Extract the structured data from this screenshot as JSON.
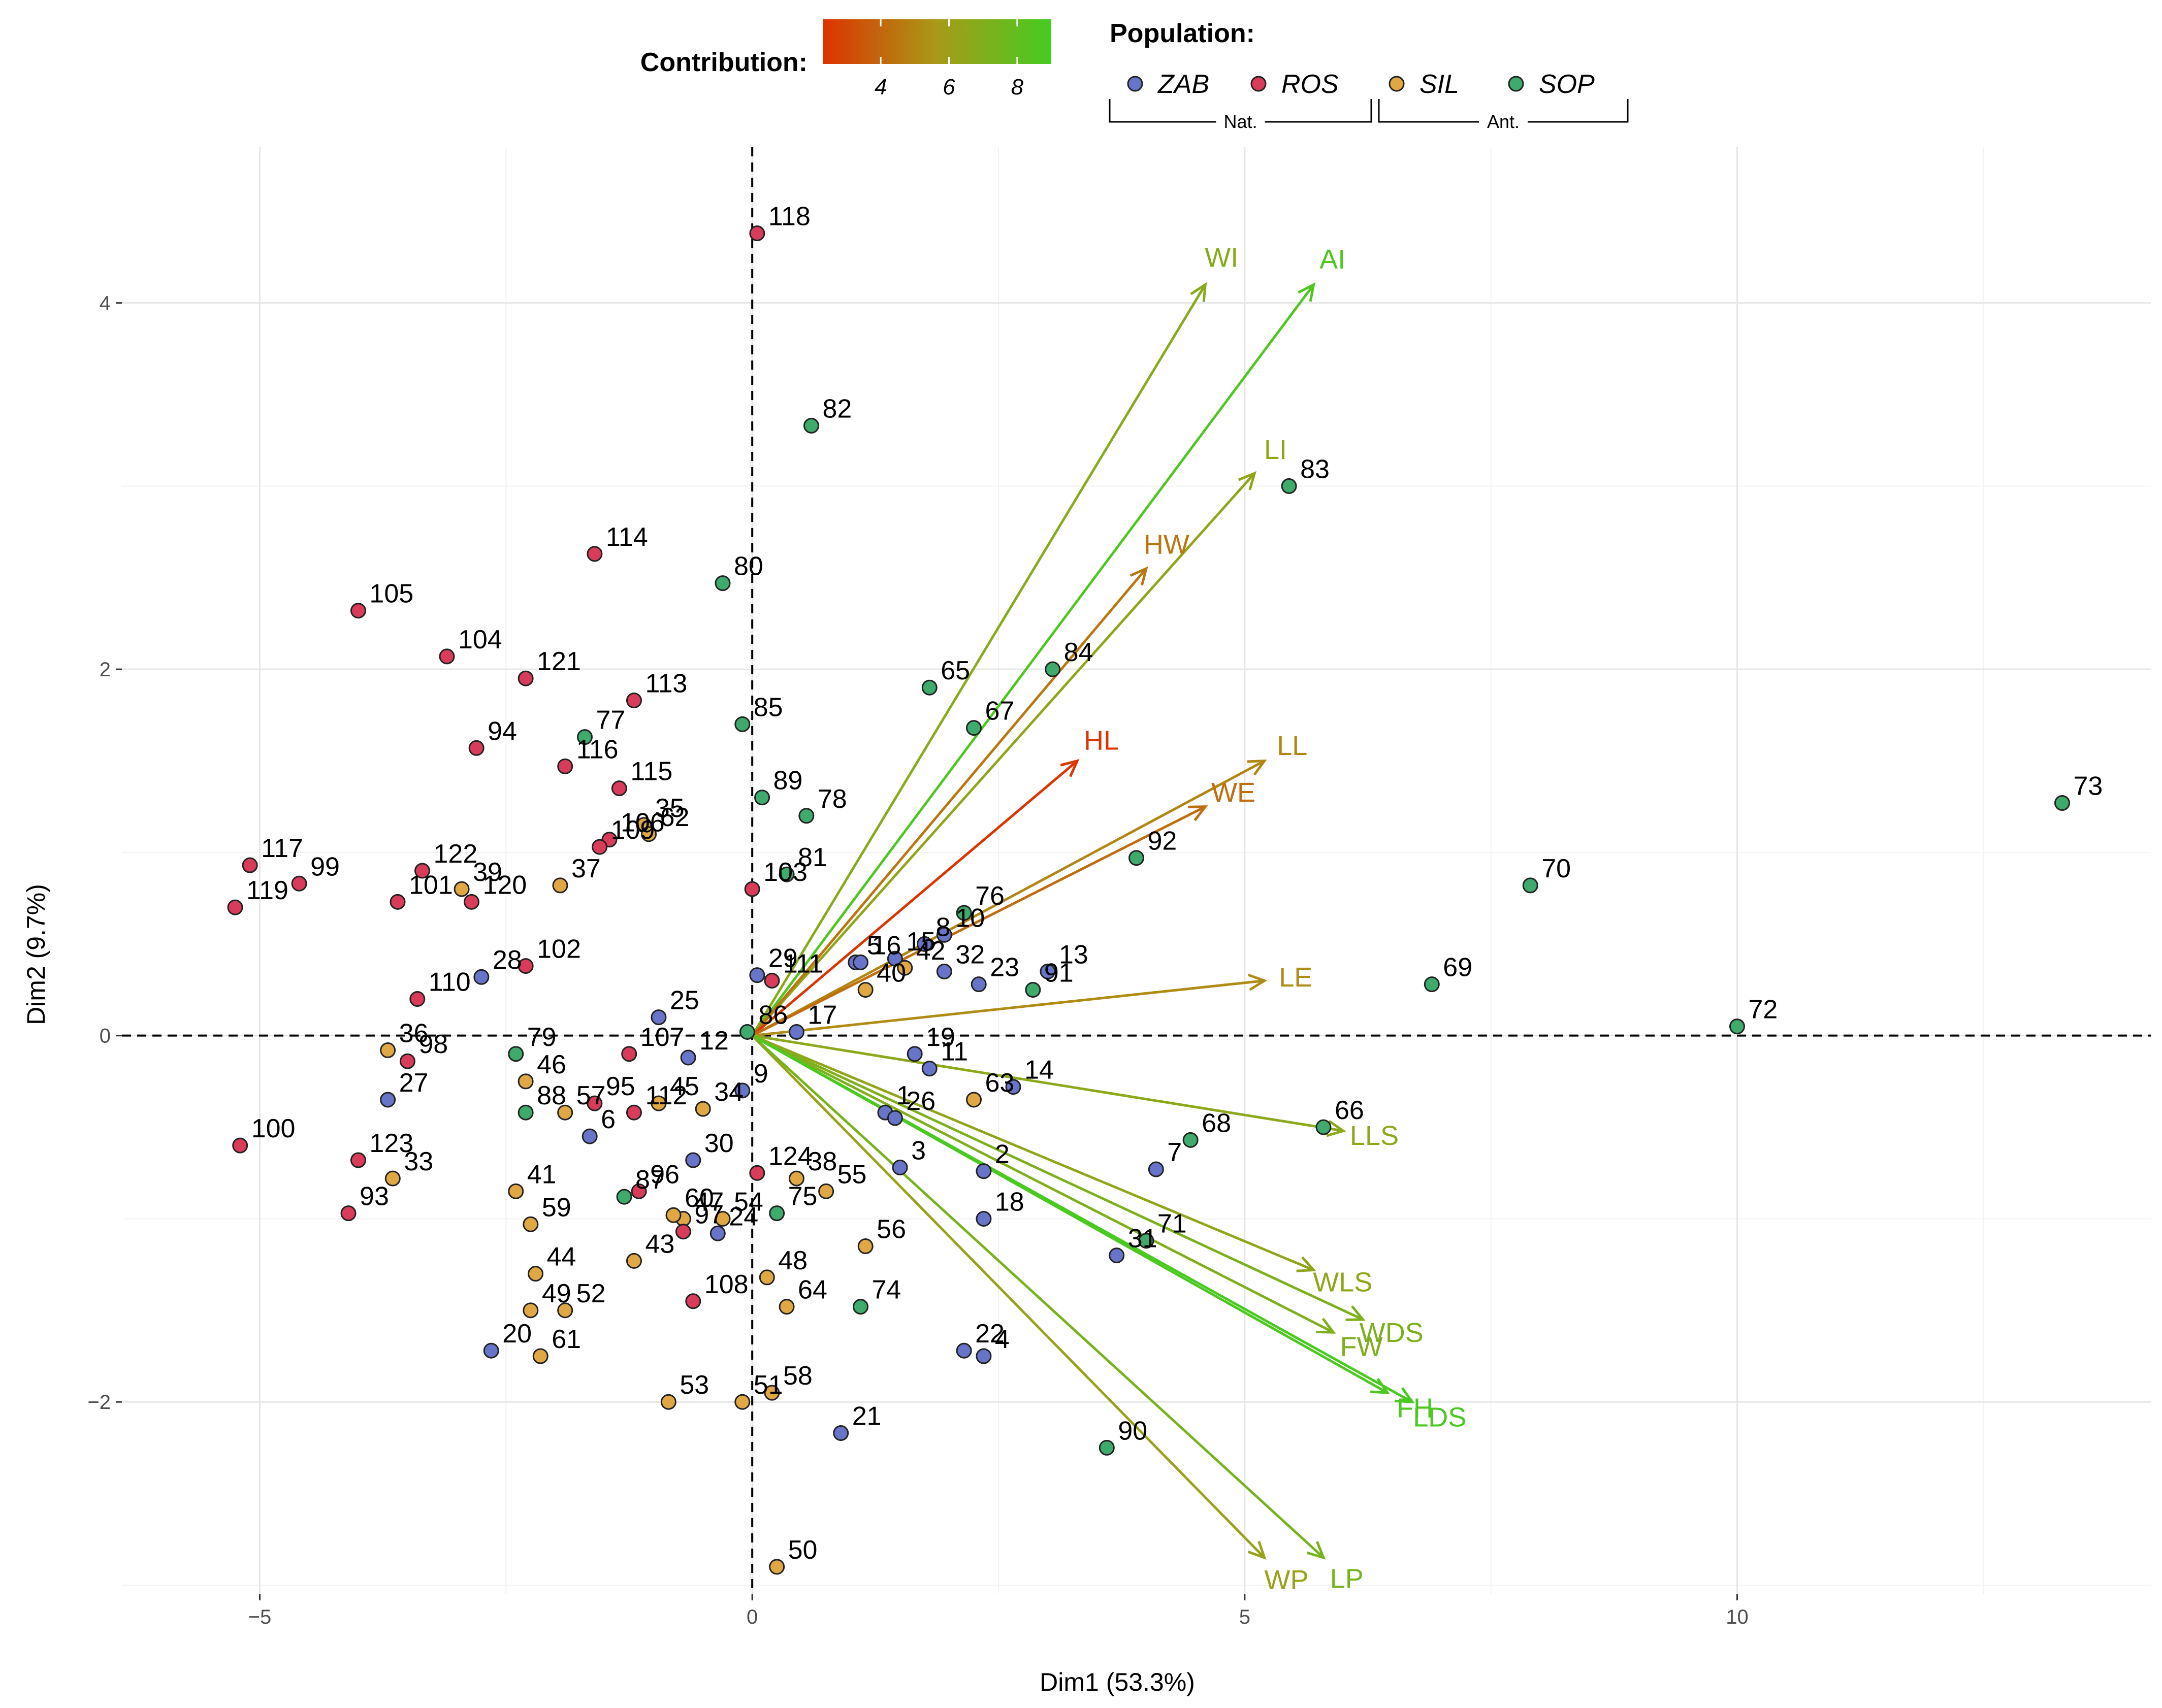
{
  "chart_data": {
    "type": "scatter",
    "subtype": "pca-biplot",
    "xlabel": "Dim1 (53.3%)",
    "ylabel": "Dim2 (9.7%)",
    "xlim": [
      -6.4,
      14.2
    ],
    "ylim": [
      -3.05,
      4.85
    ],
    "xticks": [
      -5,
      0,
      5,
      10
    ],
    "yticks": [
      -2,
      0,
      2,
      4
    ],
    "grid": true,
    "legend": {
      "contribution_title": "Contribution:",
      "contribution_range": [
        2.3,
        9.0
      ],
      "contribution_ticks": [
        4,
        6,
        8
      ],
      "contribution_colors": [
        "#dd3300",
        "#a89a18",
        "#44cc22"
      ],
      "population_title": "Population:",
      "populations": [
        {
          "code": "ZAB",
          "color": "#6874c8",
          "group": "Nat."
        },
        {
          "code": "ROS",
          "color": "#d83c5a",
          "group": "Nat."
        },
        {
          "code": "SIL",
          "color": "#e0a845",
          "group": "Ant."
        },
        {
          "code": "SOP",
          "color": "#3eaa6c",
          "group": "Ant."
        }
      ],
      "groups": [
        "Nat.",
        "Ant."
      ]
    },
    "variables": [
      {
        "name": "WI",
        "x": 4.6,
        "y": 4.1,
        "contrib": 6.8
      },
      {
        "name": "AI",
        "x": 5.7,
        "y": 4.1,
        "contrib": 8.6
      },
      {
        "name": "LI",
        "x": 5.1,
        "y": 3.07,
        "contrib": 6.4
      },
      {
        "name": "HW",
        "x": 4.0,
        "y": 2.55,
        "contrib": 4.5
      },
      {
        "name": "HL",
        "x": 3.3,
        "y": 1.5,
        "contrib": 2.4
      },
      {
        "name": "LL",
        "x": 5.2,
        "y": 1.5,
        "contrib": 5.0
      },
      {
        "name": "WE",
        "x": 4.6,
        "y": 1.25,
        "contrib": 4.2
      },
      {
        "name": "LE",
        "x": 5.2,
        "y": 0.3,
        "contrib": 5.2
      },
      {
        "name": "LLS",
        "x": 6.0,
        "y": -0.52,
        "contrib": 6.6
      },
      {
        "name": "WLS",
        "x": 5.7,
        "y": -1.28,
        "contrib": 6.4
      },
      {
        "name": "WDS",
        "x": 6.2,
        "y": -1.55,
        "contrib": 7.1
      },
      {
        "name": "FW",
        "x": 5.9,
        "y": -1.62,
        "contrib": 7.0
      },
      {
        "name": "FH",
        "x": 6.45,
        "y": -1.95,
        "contrib": 8.7
      },
      {
        "name": "LDS",
        "x": 6.7,
        "y": -2.0,
        "contrib": 8.8
      },
      {
        "name": "WP",
        "x": 5.2,
        "y": -2.85,
        "contrib": 6.2
      },
      {
        "name": "LP",
        "x": 5.8,
        "y": -2.85,
        "contrib": 7.3
      }
    ],
    "individuals": [
      {
        "id": "1",
        "x": 1.35,
        "y": -0.42,
        "pop": "ZAB"
      },
      {
        "id": "2",
        "x": 2.35,
        "y": -0.74,
        "pop": "ZAB"
      },
      {
        "id": "3",
        "x": 1.5,
        "y": -0.72,
        "pop": "ZAB"
      },
      {
        "id": "4",
        "x": 2.35,
        "y": -1.75,
        "pop": "ZAB"
      },
      {
        "id": "5",
        "x": 1.05,
        "y": 0.4,
        "pop": "ZAB"
      },
      {
        "id": "6",
        "x": -1.65,
        "y": -0.55,
        "pop": "ZAB"
      },
      {
        "id": "7",
        "x": 4.1,
        "y": -0.73,
        "pop": "ZAB"
      },
      {
        "id": "8",
        "x": 1.75,
        "y": 0.5,
        "pop": "ZAB"
      },
      {
        "id": "9",
        "x": -0.1,
        "y": -0.3,
        "pop": "ZAB"
      },
      {
        "id": "10",
        "x": 1.95,
        "y": 0.55,
        "pop": "ZAB"
      },
      {
        "id": "11",
        "x": 1.8,
        "y": -0.18,
        "pop": "ZAB"
      },
      {
        "id": "12",
        "x": -0.65,
        "y": -0.12,
        "pop": "ZAB"
      },
      {
        "id": "13",
        "x": 3.0,
        "y": 0.35,
        "pop": "ZAB"
      },
      {
        "id": "14",
        "x": 2.65,
        "y": -0.28,
        "pop": "ZAB"
      },
      {
        "id": "15",
        "x": 1.45,
        "y": 0.42,
        "pop": "ZAB"
      },
      {
        "id": "16",
        "x": 1.1,
        "y": 0.4,
        "pop": "ZAB"
      },
      {
        "id": "17",
        "x": 0.45,
        "y": 0.02,
        "pop": "ZAB"
      },
      {
        "id": "18",
        "x": 2.35,
        "y": -1.0,
        "pop": "ZAB"
      },
      {
        "id": "19",
        "x": 1.65,
        "y": -0.1,
        "pop": "ZAB"
      },
      {
        "id": "20",
        "x": -2.65,
        "y": -1.72,
        "pop": "ZAB"
      },
      {
        "id": "21",
        "x": 0.9,
        "y": -2.17,
        "pop": "ZAB"
      },
      {
        "id": "22",
        "x": 2.15,
        "y": -1.72,
        "pop": "ZAB"
      },
      {
        "id": "23",
        "x": 2.3,
        "y": 0.28,
        "pop": "ZAB"
      },
      {
        "id": "24",
        "x": -0.35,
        "y": -1.08,
        "pop": "ZAB"
      },
      {
        "id": "25",
        "x": -0.95,
        "y": 0.1,
        "pop": "ZAB"
      },
      {
        "id": "26",
        "x": 1.45,
        "y": -0.45,
        "pop": "ZAB"
      },
      {
        "id": "27",
        "x": -3.7,
        "y": -0.35,
        "pop": "ZAB"
      },
      {
        "id": "28",
        "x": -2.75,
        "y": 0.32,
        "pop": "ZAB"
      },
      {
        "id": "29",
        "x": 0.05,
        "y": 0.33,
        "pop": "ZAB"
      },
      {
        "id": "30",
        "x": -0.6,
        "y": -0.68,
        "pop": "ZAB"
      },
      {
        "id": "31",
        "x": 3.7,
        "y": -1.2,
        "pop": "ZAB"
      },
      {
        "id": "32",
        "x": 1.95,
        "y": 0.35,
        "pop": "ZAB"
      },
      {
        "id": "33",
        "x": -3.65,
        "y": -0.78,
        "pop": "SIL"
      },
      {
        "id": "34",
        "x": -0.5,
        "y": -0.4,
        "pop": "SIL"
      },
      {
        "id": "35",
        "x": -1.1,
        "y": 1.15,
        "pop": "SIL"
      },
      {
        "id": "36",
        "x": -3.7,
        "y": -0.08,
        "pop": "SIL"
      },
      {
        "id": "37",
        "x": -1.95,
        "y": 0.82,
        "pop": "SIL"
      },
      {
        "id": "38",
        "x": 0.45,
        "y": -0.78,
        "pop": "SIL"
      },
      {
        "id": "39",
        "x": -2.95,
        "y": 0.8,
        "pop": "SIL"
      },
      {
        "id": "40",
        "x": 1.15,
        "y": 0.25,
        "pop": "SIL"
      },
      {
        "id": "41",
        "x": -2.4,
        "y": -0.85,
        "pop": "SIL"
      },
      {
        "id": "42",
        "x": 1.55,
        "y": 0.37,
        "pop": "SIL"
      },
      {
        "id": "43",
        "x": -1.2,
        "y": -1.23,
        "pop": "SIL"
      },
      {
        "id": "44",
        "x": -2.2,
        "y": -1.3,
        "pop": "SIL"
      },
      {
        "id": "45",
        "x": -0.95,
        "y": -0.37,
        "pop": "SIL"
      },
      {
        "id": "46",
        "x": -2.3,
        "y": -0.25,
        "pop": "SIL"
      },
      {
        "id": "47",
        "x": -0.7,
        "y": -1.0,
        "pop": "SIL"
      },
      {
        "id": "48",
        "x": 0.15,
        "y": -1.32,
        "pop": "SIL"
      },
      {
        "id": "49",
        "x": -2.25,
        "y": -1.5,
        "pop": "SIL"
      },
      {
        "id": "50",
        "x": 0.25,
        "y": -2.9,
        "pop": "SIL"
      },
      {
        "id": "51",
        "x": -0.1,
        "y": -2.0,
        "pop": "SIL"
      },
      {
        "id": "52",
        "x": -1.9,
        "y": -1.5,
        "pop": "SIL"
      },
      {
        "id": "53",
        "x": -0.85,
        "y": -2.0,
        "pop": "SIL"
      },
      {
        "id": "54",
        "x": -0.3,
        "y": -1.0,
        "pop": "SIL"
      },
      {
        "id": "55",
        "x": 0.75,
        "y": -0.85,
        "pop": "SIL"
      },
      {
        "id": "56",
        "x": 1.15,
        "y": -1.15,
        "pop": "SIL"
      },
      {
        "id": "57",
        "x": -1.9,
        "y": -0.42,
        "pop": "SIL"
      },
      {
        "id": "58",
        "x": 0.2,
        "y": -1.95,
        "pop": "SIL"
      },
      {
        "id": "59",
        "x": -2.25,
        "y": -1.03,
        "pop": "SIL"
      },
      {
        "id": "60",
        "x": -0.8,
        "y": -0.98,
        "pop": "SIL"
      },
      {
        "id": "61",
        "x": -2.15,
        "y": -1.75,
        "pop": "SIL"
      },
      {
        "id": "62",
        "x": -1.05,
        "y": 1.1,
        "pop": "SIL"
      },
      {
        "id": "63",
        "x": 2.25,
        "y": -0.35,
        "pop": "SIL"
      },
      {
        "id": "64",
        "x": 0.35,
        "y": -1.48,
        "pop": "SIL"
      },
      {
        "id": "65",
        "x": 1.8,
        "y": 1.9,
        "pop": "SOP"
      },
      {
        "id": "66",
        "x": 5.8,
        "y": -0.5,
        "pop": "SOP"
      },
      {
        "id": "67",
        "x": 2.25,
        "y": 1.68,
        "pop": "SOP"
      },
      {
        "id": "68",
        "x": 4.45,
        "y": -0.57,
        "pop": "SOP"
      },
      {
        "id": "69",
        "x": 6.9,
        "y": 0.28,
        "pop": "SOP"
      },
      {
        "id": "70",
        "x": 7.9,
        "y": 0.82,
        "pop": "SOP"
      },
      {
        "id": "71",
        "x": 4.0,
        "y": -1.12,
        "pop": "SOP"
      },
      {
        "id": "72",
        "x": 10.0,
        "y": 0.05,
        "pop": "SOP"
      },
      {
        "id": "73",
        "x": 13.3,
        "y": 1.27,
        "pop": "SOP"
      },
      {
        "id": "74",
        "x": 1.1,
        "y": -1.48,
        "pop": "SOP"
      },
      {
        "id": "75",
        "x": 0.25,
        "y": -0.97,
        "pop": "SOP"
      },
      {
        "id": "76",
        "x": 2.15,
        "y": 0.67,
        "pop": "SOP"
      },
      {
        "id": "77",
        "x": -1.7,
        "y": 1.63,
        "pop": "SOP"
      },
      {
        "id": "78",
        "x": 0.55,
        "y": 1.2,
        "pop": "SOP"
      },
      {
        "id": "79",
        "x": -2.4,
        "y": -0.1,
        "pop": "SOP"
      },
      {
        "id": "80",
        "x": -0.3,
        "y": 2.47,
        "pop": "SOP"
      },
      {
        "id": "81",
        "x": 0.35,
        "y": 0.88,
        "pop": "SOP"
      },
      {
        "id": "82",
        "x": 0.6,
        "y": 3.33,
        "pop": "SOP"
      },
      {
        "id": "83",
        "x": 5.45,
        "y": 3.0,
        "pop": "SOP"
      },
      {
        "id": "84",
        "x": 3.05,
        "y": 2.0,
        "pop": "SOP"
      },
      {
        "id": "85",
        "x": -0.1,
        "y": 1.7,
        "pop": "SOP"
      },
      {
        "id": "86",
        "x": -0.05,
        "y": 0.02,
        "pop": "SOP"
      },
      {
        "id": "87",
        "x": -1.3,
        "y": -0.88,
        "pop": "SOP"
      },
      {
        "id": "88",
        "x": -2.3,
        "y": -0.42,
        "pop": "SOP"
      },
      {
        "id": "89",
        "x": 0.1,
        "y": 1.3,
        "pop": "SOP"
      },
      {
        "id": "90",
        "x": 3.6,
        "y": -2.25,
        "pop": "SOP"
      },
      {
        "id": "91",
        "x": 2.85,
        "y": 0.25,
        "pop": "SOP"
      },
      {
        "id": "92",
        "x": 3.9,
        "y": 0.97,
        "pop": "SOP"
      },
      {
        "id": "93",
        "x": -4.1,
        "y": -0.97,
        "pop": "ROS"
      },
      {
        "id": "94",
        "x": -2.8,
        "y": 1.57,
        "pop": "ROS"
      },
      {
        "id": "95",
        "x": -1.6,
        "y": -0.37,
        "pop": "ROS"
      },
      {
        "id": "96",
        "x": -1.15,
        "y": -0.85,
        "pop": "ROS"
      },
      {
        "id": "97",
        "x": -0.7,
        "y": -1.07,
        "pop": "ROS"
      },
      {
        "id": "98",
        "x": -3.5,
        "y": -0.14,
        "pop": "ROS"
      },
      {
        "id": "99",
        "x": -4.6,
        "y": 0.83,
        "pop": "ROS"
      },
      {
        "id": "100",
        "x": -5.2,
        "y": -0.6,
        "pop": "ROS"
      },
      {
        "id": "101",
        "x": -3.6,
        "y": 0.73,
        "pop": "ROS"
      },
      {
        "id": "102",
        "x": -2.3,
        "y": 0.38,
        "pop": "ROS"
      },
      {
        "id": "103",
        "x": 0.0,
        "y": 0.8,
        "pop": "ROS"
      },
      {
        "id": "104",
        "x": -3.1,
        "y": 2.07,
        "pop": "ROS"
      },
      {
        "id": "105",
        "x": -4.0,
        "y": 2.32,
        "pop": "ROS"
      },
      {
        "id": "106",
        "x": -1.45,
        "y": 1.07,
        "pop": "ROS"
      },
      {
        "id": "107",
        "x": -1.25,
        "y": -0.1,
        "pop": "ROS"
      },
      {
        "id": "108",
        "x": -0.6,
        "y": -1.45,
        "pop": "ROS"
      },
      {
        "id": "109",
        "x": -1.55,
        "y": 1.03,
        "pop": "ROS"
      },
      {
        "id": "110",
        "x": -3.4,
        "y": 0.2,
        "pop": "ROS"
      },
      {
        "id": "111",
        "x": 0.2,
        "y": 0.3,
        "pop": "ROS"
      },
      {
        "id": "112",
        "x": -1.2,
        "y": -0.42,
        "pop": "ROS"
      },
      {
        "id": "113",
        "x": -1.2,
        "y": 1.83,
        "pop": "ROS"
      },
      {
        "id": "114",
        "x": -1.6,
        "y": 2.63,
        "pop": "ROS"
      },
      {
        "id": "115",
        "x": -1.35,
        "y": 1.35,
        "pop": "ROS"
      },
      {
        "id": "116",
        "x": -1.9,
        "y": 1.47,
        "pop": "ROS"
      },
      {
        "id": "117",
        "x": -5.1,
        "y": 0.93,
        "pop": "ROS"
      },
      {
        "id": "118",
        "x": 0.05,
        "y": 4.38,
        "pop": "ROS"
      },
      {
        "id": "119",
        "x": -5.25,
        "y": 0.7,
        "pop": "ROS"
      },
      {
        "id": "120",
        "x": -2.85,
        "y": 0.73,
        "pop": "ROS"
      },
      {
        "id": "121",
        "x": -2.3,
        "y": 1.95,
        "pop": "ROS"
      },
      {
        "id": "122",
        "x": -3.35,
        "y": 0.9,
        "pop": "ROS"
      },
      {
        "id": "123",
        "x": -4.0,
        "y": -0.68,
        "pop": "ROS"
      },
      {
        "id": "124",
        "x": 0.05,
        "y": -0.75,
        "pop": "ROS"
      }
    ]
  }
}
